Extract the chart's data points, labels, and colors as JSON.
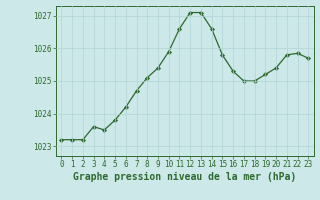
{
  "x": [
    0,
    1,
    2,
    3,
    4,
    5,
    6,
    7,
    8,
    9,
    10,
    11,
    12,
    13,
    14,
    15,
    16,
    17,
    18,
    19,
    20,
    21,
    22,
    23
  ],
  "y": [
    1023.2,
    1023.2,
    1023.2,
    1023.6,
    1023.5,
    1023.8,
    1024.2,
    1024.7,
    1025.1,
    1025.4,
    1025.9,
    1026.6,
    1027.1,
    1027.1,
    1026.6,
    1025.8,
    1025.3,
    1025.0,
    1025.0,
    1025.2,
    1025.4,
    1025.8,
    1025.85,
    1025.7
  ],
  "line_color": "#2d6a2d",
  "marker_color": "#2d6a2d",
  "bg_color": "#cce8e8",
  "grid_color": "#b0d4d4",
  "axis_label_color": "#2d6a2d",
  "tick_color": "#2d6a2d",
  "xlabel": "Graphe pression niveau de la mer (hPa)",
  "ylim": [
    1022.7,
    1027.3
  ],
  "xlim": [
    -0.5,
    23.5
  ],
  "yticks": [
    1023,
    1024,
    1025,
    1026,
    1027
  ],
  "xticks": [
    0,
    1,
    2,
    3,
    4,
    5,
    6,
    7,
    8,
    9,
    10,
    11,
    12,
    13,
    14,
    15,
    16,
    17,
    18,
    19,
    20,
    21,
    22,
    23
  ],
  "xtick_labels": [
    "0",
    "1",
    "2",
    "3",
    "4",
    "5",
    "6",
    "7",
    "8",
    "9",
    "10",
    "11",
    "12",
    "13",
    "14",
    "15",
    "16",
    "17",
    "18",
    "19",
    "20",
    "21",
    "22",
    "23"
  ],
  "tick_fontsize": 5.5,
  "xlabel_fontsize": 7,
  "linewidth": 0.9,
  "markersize": 2.2
}
